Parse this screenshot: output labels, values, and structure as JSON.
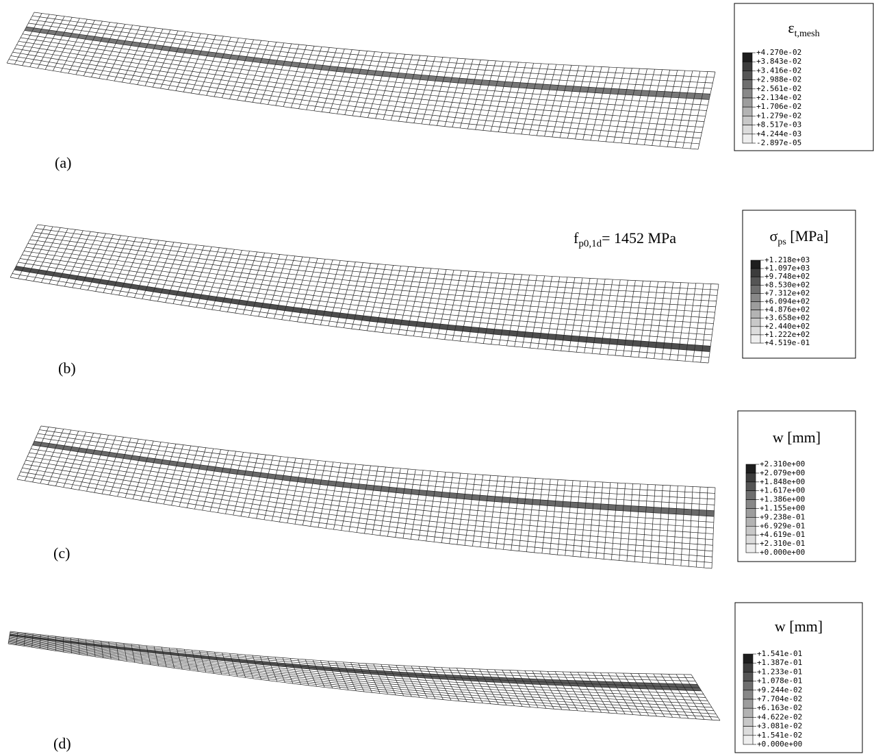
{
  "panels": [
    {
      "label": "(a)",
      "legend": {
        "title": {
          "symbol": "ε",
          "subscript": "t,mesh"
        },
        "values": [
          "+4.270e-02",
          "+3.843e-02",
          "+3.416e-02",
          "+2.988e-02",
          "+2.561e-02",
          "+2.134e-02",
          "+1.706e-02",
          "+1.279e-02",
          "+8.517e-03",
          "+4.244e-03",
          "-2.897e-05"
        ]
      }
    },
    {
      "label": "(b)",
      "legend": {
        "title": {
          "symbol": "σ",
          "subscript": "ps",
          "suffix": " [MPa]"
        },
        "values": [
          "+1.218e+03",
          "+1.097e+03",
          "+9.748e+02",
          "+8.530e+02",
          "+7.312e+02",
          "+6.094e+02",
          "+4.876e+02",
          "+3.658e+02",
          "+2.440e+02",
          "+1.222e+02",
          "+4.519e-01"
        ]
      }
    },
    {
      "label": "(c)",
      "legend": {
        "title": {
          "symbol": "w [mm]"
        },
        "values": [
          "+2.310e+00",
          "+2.079e+00",
          "+1.848e+00",
          "+1.617e+00",
          "+1.386e+00",
          "+1.155e+00",
          "+9.238e-01",
          "+6.929e-01",
          "+4.619e-01",
          "+2.310e-01",
          "+0.000e+00"
        ]
      }
    },
    {
      "label": "(d)",
      "legend": {
        "title": {
          "symbol": "w [mm]"
        },
        "values": [
          "+1.541e-01",
          "+1.387e-01",
          "+1.233e-01",
          "+1.078e-01",
          "+9.244e-02",
          "+7.704e-02",
          "+6.163e-02",
          "+4.622e-02",
          "+3.081e-02",
          "+1.541e-02",
          "+0.000e+00"
        ]
      }
    }
  ],
  "annotation": {
    "symbol": "f",
    "subscript": "p0,1d",
    "text": "= 1452 MPa"
  }
}
